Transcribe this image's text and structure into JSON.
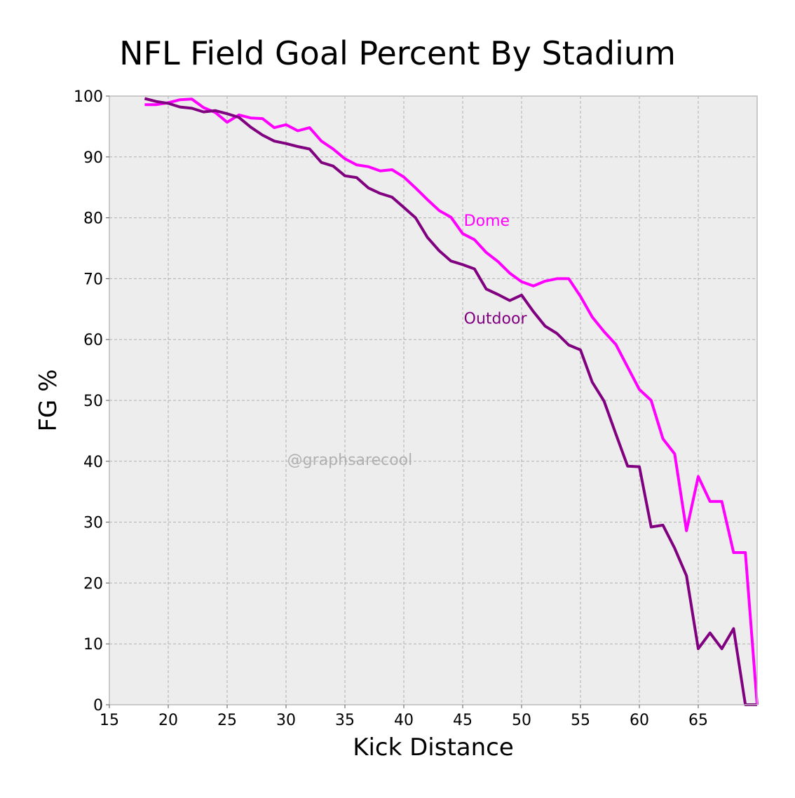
{
  "chart_data": {
    "type": "line",
    "title": "NFL Field Goal Percent By Stadium",
    "xlabel": "Kick Distance",
    "ylabel": "FG %",
    "xlim": [
      15,
      70
    ],
    "ylim": [
      0,
      100
    ],
    "xticks": [
      15,
      20,
      25,
      30,
      35,
      40,
      45,
      50,
      55,
      60,
      65
    ],
    "yticks": [
      0,
      10,
      20,
      30,
      40,
      50,
      60,
      70,
      80,
      90,
      100
    ],
    "grid": true,
    "watermark": "@graphsarecool",
    "colors": {
      "Dome": "#ff00ff",
      "Outdoor": "#800080",
      "background": "#ededed",
      "grid": "#b0b0b0"
    },
    "series": [
      {
        "name": "Dome",
        "x": [
          18,
          19,
          20,
          21,
          22,
          23,
          24,
          25,
          26,
          27,
          28,
          29,
          30,
          31,
          32,
          33,
          34,
          35,
          36,
          37,
          38,
          39,
          40,
          41,
          42,
          43,
          44,
          45,
          46,
          47,
          48,
          49,
          50,
          51,
          52,
          53,
          54,
          55,
          56,
          57,
          58,
          59,
          60,
          61,
          62,
          63,
          64,
          65,
          66,
          67,
          68,
          69,
          70
        ],
        "y": [
          98.6,
          98.6,
          98.9,
          99.4,
          99.5,
          98.1,
          97.3,
          95.7,
          96.9,
          96.4,
          96.3,
          94.8,
          95.3,
          94.3,
          94.8,
          92.6,
          91.3,
          89.7,
          88.7,
          88.4,
          87.7,
          87.9,
          86.7,
          84.9,
          83.0,
          81.2,
          80.1,
          77.4,
          76.4,
          74.3,
          72.8,
          70.9,
          69.5,
          68.8,
          69.6,
          70.0,
          70.0,
          67.1,
          63.7,
          61.3,
          59.2,
          55.5,
          51.8,
          50.0,
          43.7,
          41.2,
          28.6,
          37.5,
          33.4,
          33.4,
          25.0,
          25.0,
          0.0
        ]
      },
      {
        "name": "Outdoor",
        "x": [
          18,
          19,
          20,
          21,
          22,
          23,
          24,
          25,
          26,
          27,
          28,
          29,
          30,
          31,
          32,
          33,
          34,
          35,
          36,
          37,
          38,
          39,
          40,
          41,
          42,
          43,
          44,
          45,
          46,
          47,
          48,
          49,
          50,
          51,
          52,
          53,
          54,
          55,
          56,
          57,
          58,
          59,
          60,
          61,
          62,
          63,
          64,
          65,
          66,
          67,
          68,
          69,
          70
        ],
        "y": [
          99.6,
          99.1,
          98.8,
          98.2,
          98.0,
          97.4,
          97.6,
          97.1,
          96.5,
          94.9,
          93.6,
          92.6,
          92.2,
          91.7,
          91.3,
          89.1,
          88.5,
          86.9,
          86.6,
          84.9,
          84.0,
          83.4,
          81.7,
          80.0,
          76.8,
          74.6,
          72.9,
          72.3,
          71.6,
          68.3,
          67.4,
          66.4,
          67.3,
          64.6,
          62.2,
          61.0,
          59.1,
          58.3,
          53.0,
          49.9,
          44.5,
          39.2,
          39.1,
          29.2,
          29.5,
          25.7,
          21.2,
          9.2,
          11.8,
          9.2,
          12.5,
          0.0,
          0.0
        ]
      }
    ],
    "annotations": [
      {
        "text": "Dome",
        "x": 45.1,
        "y": 78.7
      },
      {
        "text": "Outdoor",
        "x": 45.1,
        "y": 62.6
      }
    ]
  }
}
